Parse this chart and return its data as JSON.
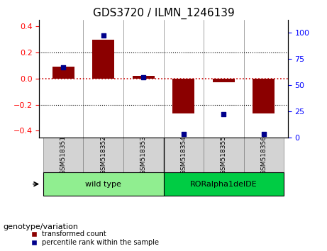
{
  "title": "GDS3720 / ILMN_1246139",
  "samples": [
    "GSM518351",
    "GSM518352",
    "GSM518353",
    "GSM518354",
    "GSM518355",
    "GSM518356"
  ],
  "transformed_count": [
    0.09,
    0.3,
    0.02,
    -0.27,
    -0.03,
    -0.27
  ],
  "percentile_rank": [
    67,
    97,
    57,
    3,
    22,
    3
  ],
  "groups": [
    {
      "label": "wild type",
      "indices": [
        0,
        1,
        2
      ],
      "color": "#90EE90"
    },
    {
      "label": "RORalpha1delDE",
      "indices": [
        3,
        4,
        5
      ],
      "color": "#00CC00"
    }
  ],
  "ylim_left": [
    -0.45,
    0.45
  ],
  "ylim_right": [
    0,
    112
  ],
  "yticks_left": [
    -0.4,
    -0.2,
    0.0,
    0.2,
    0.4
  ],
  "yticks_right": [
    0,
    25,
    50,
    75,
    100
  ],
  "bar_color": "#8B0000",
  "dot_color": "#00008B",
  "zero_line_color": "#CC0000",
  "grid_color": "#000000",
  "legend_bar_label": "transformed count",
  "legend_dot_label": "percentile rank within the sample",
  "genotype_label": "genotype/variation"
}
